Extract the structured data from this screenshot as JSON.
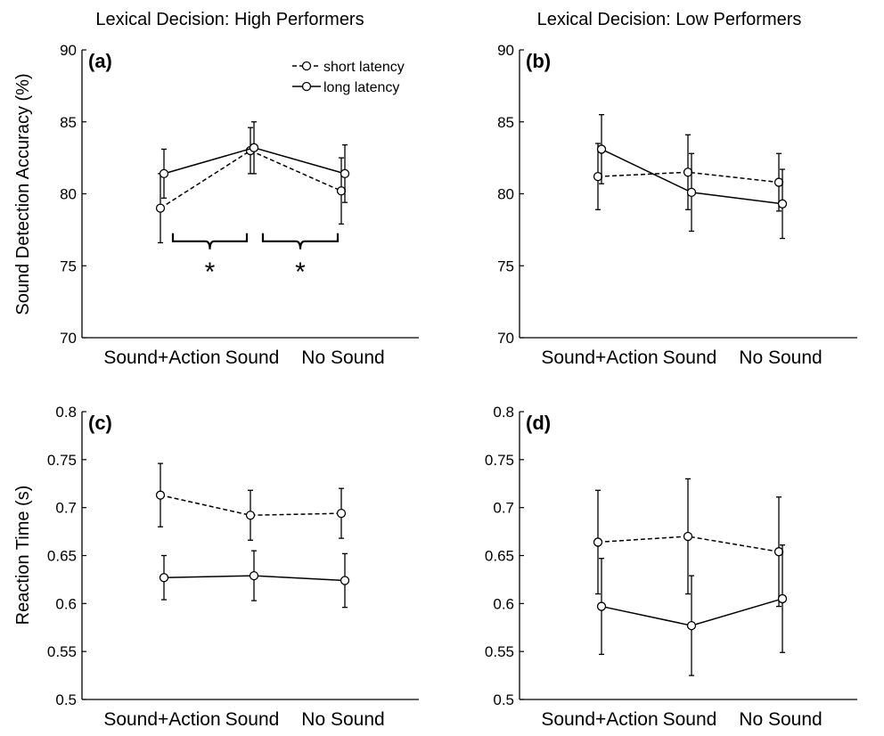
{
  "column_titles": [
    "Lexical Decision: High Performers",
    "Lexical Decision: Low Performers"
  ],
  "legend": {
    "short": "short latency",
    "long": "long latency"
  },
  "colors": {
    "line": "#000000",
    "background": "#ffffff"
  },
  "chart_data": [
    {
      "type": "line",
      "panel": "(a)",
      "ylabel": "Sound Detection Accuracy (%)",
      "ylim": [
        70,
        90
      ],
      "yticks": [
        70,
        75,
        80,
        85,
        90
      ],
      "categories": [
        "Sound+Action",
        "Sound",
        "No Sound"
      ],
      "series": [
        {
          "name": "short latency",
          "style": "dashed",
          "values": [
            79.0,
            83.0,
            80.2
          ],
          "errors": [
            2.4,
            1.6,
            2.3
          ]
        },
        {
          "name": "long latency",
          "style": "solid",
          "values": [
            81.4,
            83.2,
            81.4
          ],
          "errors": [
            1.7,
            1.8,
            2.0
          ]
        }
      ],
      "annotations": [
        {
          "type": "bracket",
          "between": [
            "Sound+Action",
            "Sound"
          ],
          "label": "*"
        },
        {
          "type": "bracket",
          "between": [
            "Sound",
            "No Sound"
          ],
          "label": "*"
        }
      ],
      "legend_position": "top-right"
    },
    {
      "type": "line",
      "panel": "(b)",
      "ylabel": "",
      "ylim": [
        70,
        90
      ],
      "yticks": [
        70,
        75,
        80,
        85,
        90
      ],
      "categories": [
        "Sound+Action",
        "Sound",
        "No Sound"
      ],
      "series": [
        {
          "name": "short latency",
          "style": "dashed",
          "values": [
            81.2,
            81.5,
            80.8
          ],
          "errors": [
            2.3,
            2.6,
            2.0
          ]
        },
        {
          "name": "long latency",
          "style": "solid",
          "values": [
            83.1,
            80.1,
            79.3
          ],
          "errors": [
            2.4,
            2.7,
            2.4
          ]
        }
      ]
    },
    {
      "type": "line",
      "panel": "(c)",
      "ylabel": "Reaction Time (s)",
      "ylim": [
        0.5,
        0.8
      ],
      "yticks": [
        "0.5",
        "0.55",
        "0.6",
        "0.65",
        "0.7",
        "0.75",
        "0.8"
      ],
      "categories": [
        "Sound+Action",
        "Sound",
        "No Sound"
      ],
      "series": [
        {
          "name": "short latency",
          "style": "dashed",
          "values": [
            0.713,
            0.692,
            0.694
          ],
          "errors": [
            0.033,
            0.026,
            0.026
          ]
        },
        {
          "name": "long latency",
          "style": "solid",
          "values": [
            0.627,
            0.629,
            0.624
          ],
          "errors": [
            0.023,
            0.026,
            0.028
          ]
        }
      ]
    },
    {
      "type": "line",
      "panel": "(d)",
      "ylabel": "",
      "ylim": [
        0.5,
        0.8
      ],
      "yticks": [
        "0.5",
        "0.55",
        "0.6",
        "0.65",
        "0.7",
        "0.75",
        "0.8"
      ],
      "categories": [
        "Sound+Action",
        "Sound",
        "No Sound"
      ],
      "series": [
        {
          "name": "short latency",
          "style": "dashed",
          "values": [
            0.664,
            0.67,
            0.654
          ],
          "errors": [
            0.054,
            0.06,
            0.057
          ]
        },
        {
          "name": "long latency",
          "style": "solid",
          "values": [
            0.597,
            0.577,
            0.605
          ],
          "errors": [
            0.05,
            0.052,
            0.056
          ]
        }
      ]
    }
  ]
}
